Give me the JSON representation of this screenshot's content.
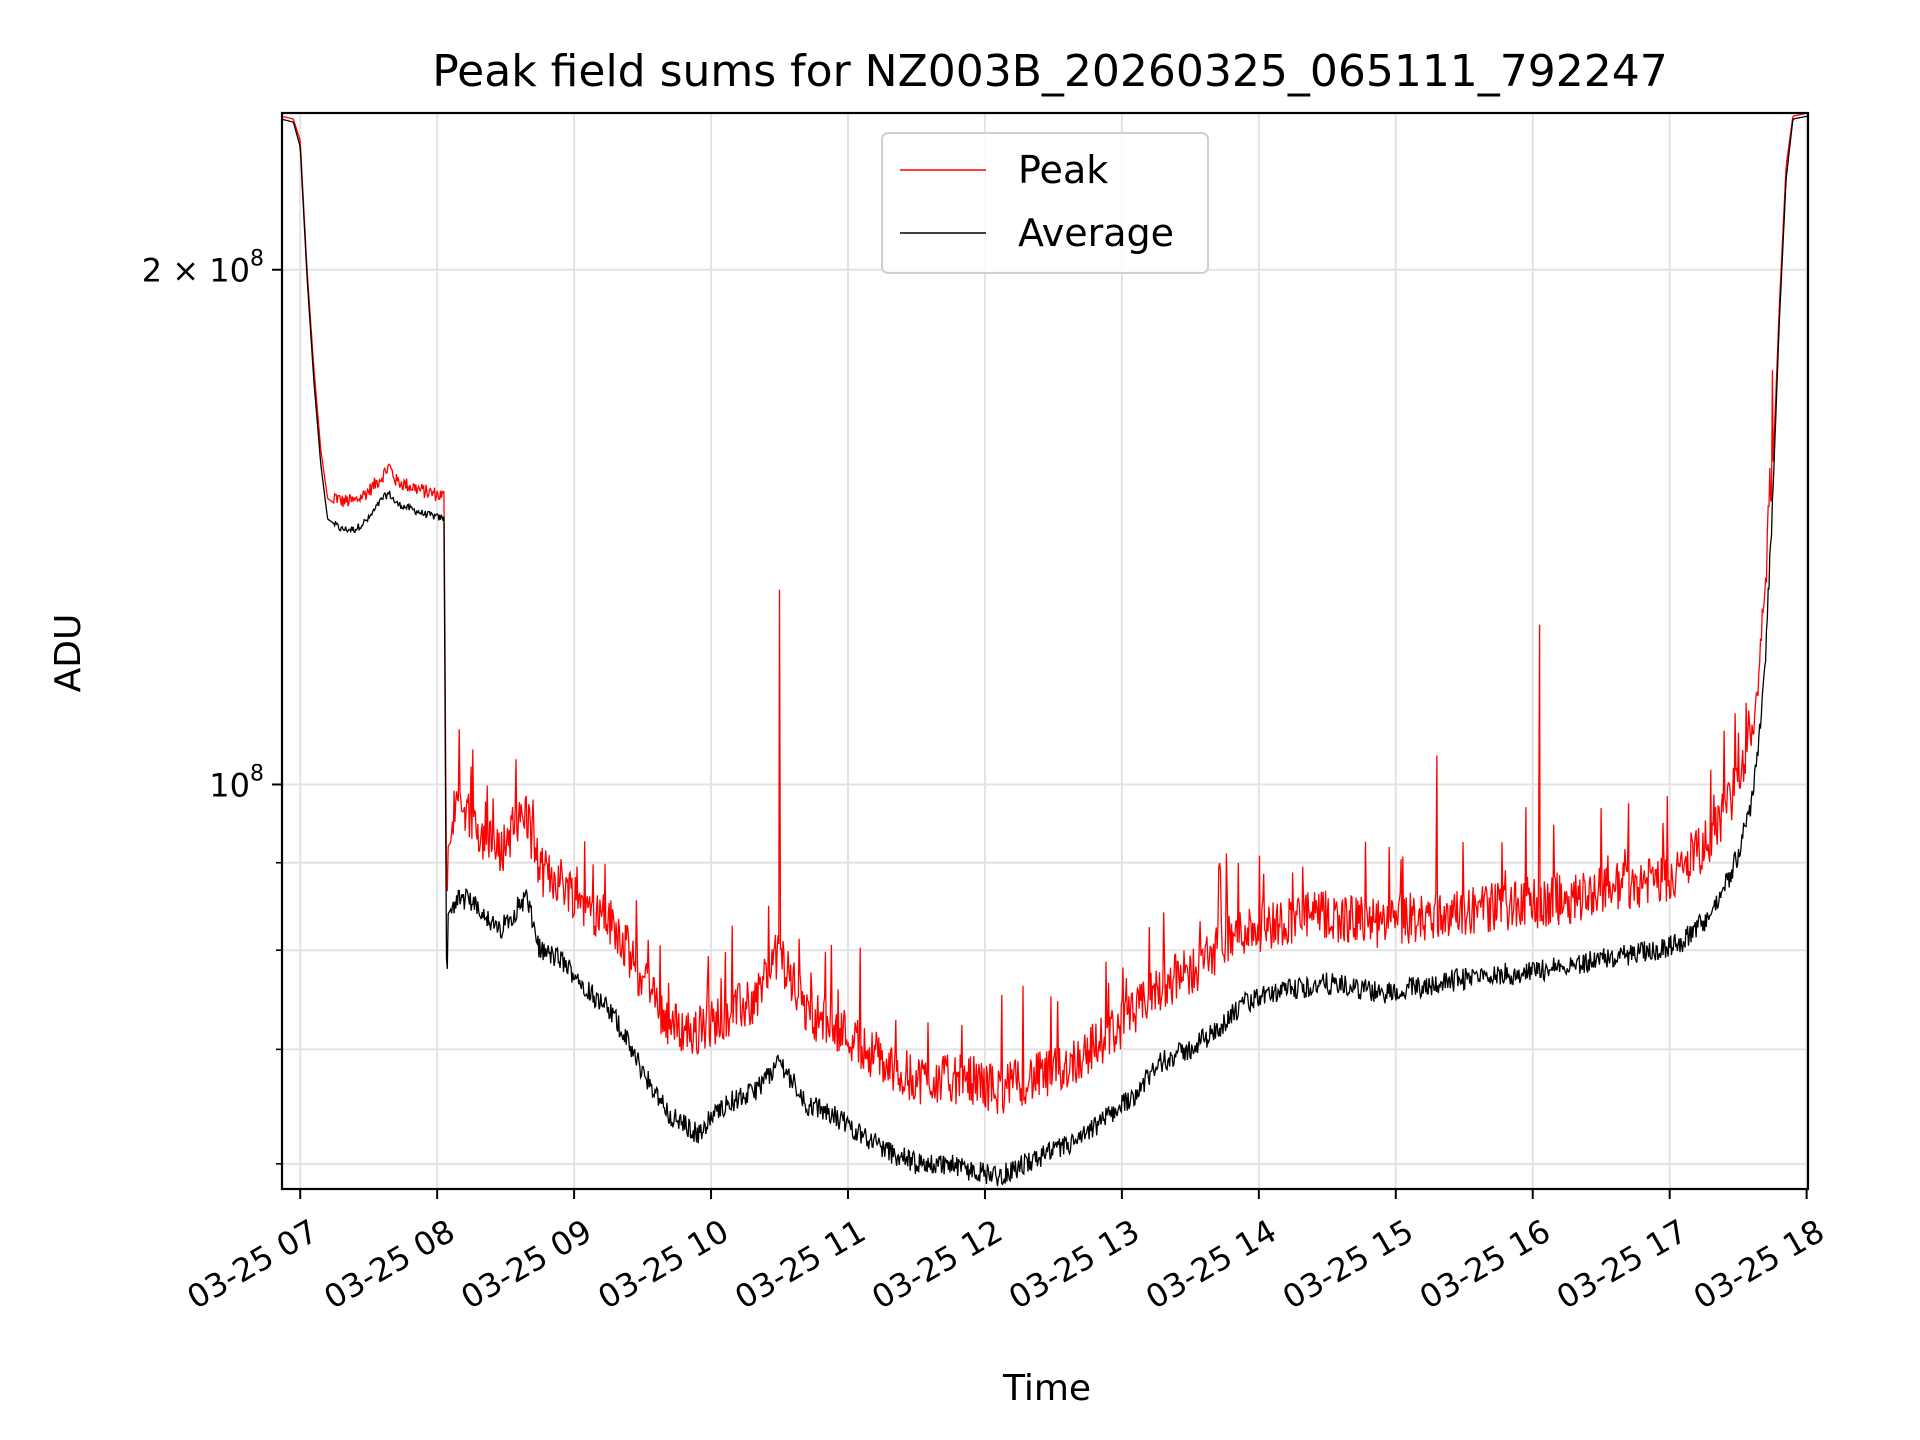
{
  "chart_data": {
    "type": "line",
    "title": "Peak field sums for NZ003B_20260325_065111_792247",
    "xlabel": "Time",
    "ylabel": "ADU",
    "yscale": "log",
    "grid": true,
    "legend_position": "upper-center",
    "ylim": [
      58000000,
      247000000
    ],
    "x_unit": "hours since 03-25 00:00",
    "xlim": [
      6.867,
      18.01
    ],
    "x_ticks": [
      {
        "value": 7,
        "label": "03-25 07"
      },
      {
        "value": 8,
        "label": "03-25 08"
      },
      {
        "value": 9,
        "label": "03-25 09"
      },
      {
        "value": 10,
        "label": "03-25 10"
      },
      {
        "value": 11,
        "label": "03-25 11"
      },
      {
        "value": 12,
        "label": "03-25 12"
      },
      {
        "value": 13,
        "label": "03-25 13"
      },
      {
        "value": 14,
        "label": "03-25 14"
      },
      {
        "value": 15,
        "label": "03-25 15"
      },
      {
        "value": 16,
        "label": "03-25 16"
      },
      {
        "value": 17,
        "label": "03-25 17"
      },
      {
        "value": 18,
        "label": "03-25 18"
      }
    ],
    "y_major_ticks": [
      {
        "value": 100000000,
        "base": "10",
        "exp": "8",
        "mantissa": ""
      },
      {
        "value": 200000000,
        "base": "10",
        "exp": "8",
        "mantissa": "2 × "
      }
    ],
    "y_minor_ticks": [
      60000000,
      70000000,
      80000000,
      90000000,
      300000000
    ],
    "series": [
      {
        "name": "Peak",
        "color": "#ff0000",
        "x": [
          6.86,
          6.95,
          7.0,
          7.05,
          7.1,
          7.15,
          7.2,
          7.3,
          7.4,
          7.5,
          7.6,
          7.65,
          7.7,
          7.8,
          7.9,
          8.05,
          8.07,
          8.08,
          8.15,
          8.3,
          8.45,
          8.55,
          8.65,
          8.75,
          8.9,
          9.1,
          9.3,
          9.5,
          9.7,
          9.9,
          10.1,
          10.3,
          10.45,
          10.5,
          10.7,
          10.9,
          11.1,
          11.3,
          11.5,
          11.7,
          11.9,
          12.1,
          12.3,
          12.5,
          12.7,
          12.9,
          13.1,
          13.3,
          13.5,
          13.7,
          13.9,
          14.1,
          14.3,
          14.5,
          14.7,
          14.9,
          15.1,
          15.3,
          15.5,
          15.7,
          15.9,
          16.1,
          16.3,
          16.5,
          16.7,
          16.9,
          17.1,
          17.3,
          17.4,
          17.5,
          17.6,
          17.65,
          17.7,
          17.75,
          17.8,
          17.85,
          17.9,
          18.01
        ],
        "y": [
          246000000,
          245000000,
          238000000,
          200000000,
          175000000,
          157000000,
          147000000,
          145000000,
          145000000,
          147000000,
          150000000,
          152000000,
          149000000,
          148000000,
          147000000,
          146000000,
          83000000,
          92000000,
          94000000,
          91000000,
          88000000,
          91000000,
          93000000,
          86000000,
          85000000,
          82000000,
          80000000,
          74000000,
          70000000,
          69000000,
          71000000,
          72000000,
          76000000,
          77000000,
          71000000,
          70000000,
          68000000,
          66000000,
          65000000,
          65000000,
          65000000,
          64000000,
          65000000,
          65500000,
          67000000,
          69000000,
          71000000,
          74000000,
          75000000,
          77500000,
          79500000,
          80000000,
          81000000,
          81000000,
          80500000,
          80000000,
          80500000,
          81000000,
          81500000,
          82000000,
          82000000,
          82500000,
          83000000,
          84000000,
          84500000,
          85000000,
          86000000,
          90000000,
          93000000,
          97000000,
          104000000,
          112000000,
          125000000,
          150000000,
          190000000,
          230000000,
          246000000,
          247000000
        ],
        "spikes": [
          {
            "x": 10.5,
            "y": 130000000
          },
          {
            "x": 16.05,
            "y": 124000000
          },
          {
            "x": 15.3,
            "y": 104000000
          },
          {
            "x": 13.85,
            "y": 90000000
          },
          {
            "x": 15.95,
            "y": 97000000
          },
          {
            "x": 16.7,
            "y": 97500000
          },
          {
            "x": 8.2,
            "y": 97000000
          },
          {
            "x": 8.7,
            "y": 98000000
          },
          {
            "x": 17.3,
            "y": 102000000
          }
        ]
      },
      {
        "name": "Average",
        "color": "#000000",
        "x": [
          6.86,
          6.95,
          7.0,
          7.05,
          7.1,
          7.15,
          7.2,
          7.3,
          7.4,
          7.5,
          7.6,
          7.65,
          7.7,
          7.8,
          7.9,
          8.05,
          8.07,
          8.08,
          8.15,
          8.3,
          8.45,
          8.55,
          8.65,
          8.75,
          8.9,
          9.1,
          9.3,
          9.5,
          9.7,
          9.9,
          10.1,
          10.3,
          10.45,
          10.5,
          10.7,
          10.9,
          11.1,
          11.3,
          11.5,
          11.7,
          11.9,
          12.1,
          12.3,
          12.5,
          12.7,
          12.9,
          13.1,
          13.3,
          13.5,
          13.7,
          13.9,
          14.1,
          14.3,
          14.5,
          14.7,
          14.9,
          15.1,
          15.3,
          15.5,
          15.7,
          15.9,
          16.1,
          16.3,
          16.5,
          16.7,
          16.9,
          17.1,
          17.3,
          17.4,
          17.5,
          17.6,
          17.65,
          17.7,
          17.75,
          17.8,
          17.85,
          17.9,
          18.01
        ],
        "y": [
          245000000,
          244000000,
          236000000,
          198000000,
          172000000,
          154000000,
          143000000,
          141000000,
          141000000,
          143000000,
          147000000,
          148000000,
          146000000,
          145000000,
          144000000,
          143000000,
          74000000,
          84000000,
          86000000,
          85000000,
          82000000,
          84000000,
          86000000,
          80000000,
          79000000,
          76000000,
          73000000,
          68000000,
          64000000,
          62500000,
          65000000,
          66000000,
          68000000,
          69000000,
          65000000,
          64000000,
          62500000,
          61000000,
          60000000,
          60000000,
          59500000,
          59000000,
          60000000,
          61000000,
          62000000,
          64000000,
          66000000,
          69000000,
          70000000,
          72000000,
          74500000,
          75500000,
          76000000,
          76500000,
          76000000,
          75500000,
          76000000,
          76500000,
          77000000,
          77500000,
          77500000,
          78000000,
          78500000,
          79000000,
          79500000,
          80000000,
          81000000,
          84000000,
          87000000,
          91000000,
          98000000,
          106000000,
          119000000,
          145000000,
          186000000,
          226000000,
          245000000,
          246000000
        ]
      }
    ]
  }
}
